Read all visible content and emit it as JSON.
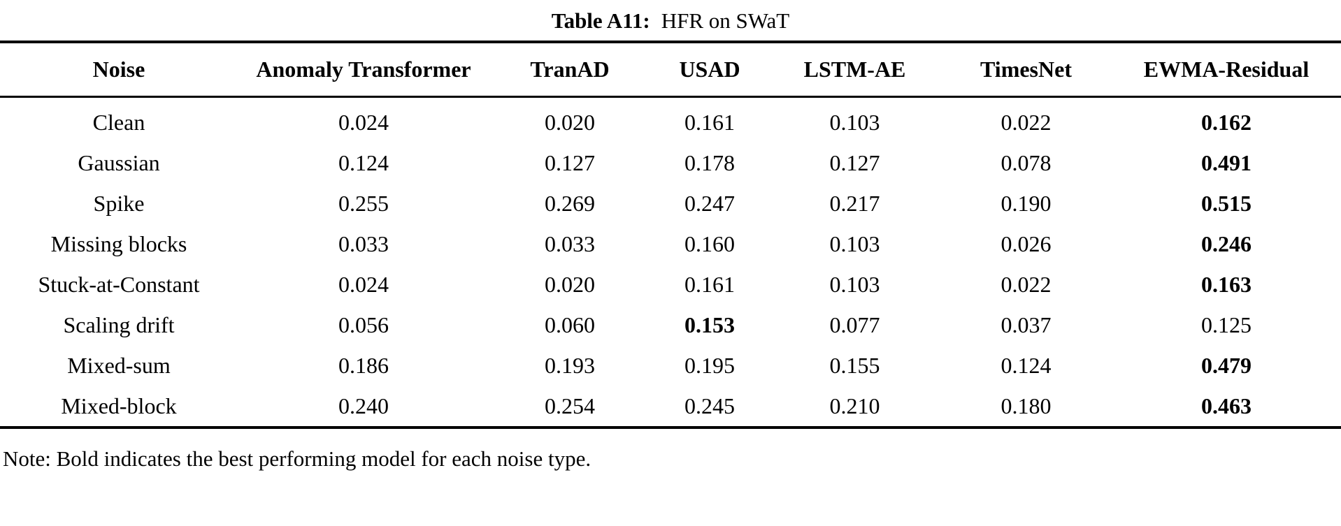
{
  "title": {
    "label": "Table A11:",
    "caption": "HFR on SWaT"
  },
  "table": {
    "columns": [
      "Noise",
      "Anomaly Transformer",
      "TranAD",
      "USAD",
      "LSTM-AE",
      "TimesNet",
      "EWMA-Residual"
    ],
    "rows": [
      {
        "noise": "Clean",
        "values": [
          "0.024",
          "0.020",
          "0.161",
          "0.103",
          "0.022",
          "0.162"
        ],
        "bold_index": 5
      },
      {
        "noise": "Gaussian",
        "values": [
          "0.124",
          "0.127",
          "0.178",
          "0.127",
          "0.078",
          "0.491"
        ],
        "bold_index": 5
      },
      {
        "noise": "Spike",
        "values": [
          "0.255",
          "0.269",
          "0.247",
          "0.217",
          "0.190",
          "0.515"
        ],
        "bold_index": 5
      },
      {
        "noise": "Missing blocks",
        "values": [
          "0.033",
          "0.033",
          "0.160",
          "0.103",
          "0.026",
          "0.246"
        ],
        "bold_index": 5
      },
      {
        "noise": "Stuck-at-Constant",
        "values": [
          "0.024",
          "0.020",
          "0.161",
          "0.103",
          "0.022",
          "0.163"
        ],
        "bold_index": 5
      },
      {
        "noise": "Scaling drift",
        "values": [
          "0.056",
          "0.060",
          "0.153",
          "0.077",
          "0.037",
          "0.125"
        ],
        "bold_index": 2
      },
      {
        "noise": "Mixed-sum",
        "values": [
          "0.186",
          "0.193",
          "0.195",
          "0.155",
          "0.124",
          "0.479"
        ],
        "bold_index": 5
      },
      {
        "noise": "Mixed-block",
        "values": [
          "0.240",
          "0.254",
          "0.245",
          "0.210",
          "0.180",
          "0.463"
        ],
        "bold_index": 5
      }
    ]
  },
  "note": "Note: Bold indicates the best performing model for each noise type."
}
